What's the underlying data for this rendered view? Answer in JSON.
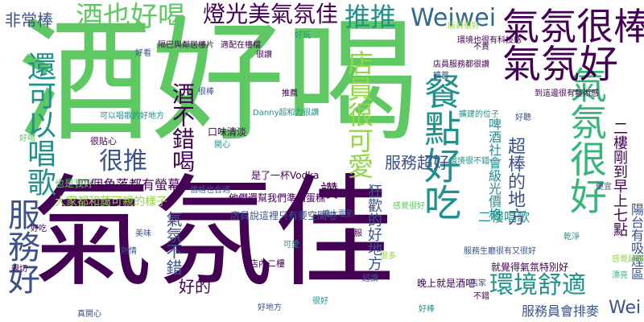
{
  "colors": {
    "dark": "#440154",
    "navy": "#3b528b",
    "blue": "#31688e",
    "teal": "#21918c",
    "sea": "#35b779",
    "green": "#5ec962",
    "lime": "#90d743",
    "yellow": "#c8e020"
  },
  "words": [
    {
      "text": "酒好喝",
      "color": "green"
    },
    {
      "text": "氣氛佳",
      "color": "dark"
    },
    {
      "text": "餐點好吃",
      "color": "teal"
    },
    {
      "text": "氣氛很好",
      "color": "sea"
    },
    {
      "text": "氣氛好",
      "color": "dark"
    },
    {
      "text": "氣氛很棒",
      "color": "dark"
    },
    {
      "text": "推推",
      "color": "teal"
    },
    {
      "text": "Weiwei",
      "color": "blue"
    },
    {
      "text": "酒也好喝",
      "color": "green"
    },
    {
      "text": "燈光美氣氛佳",
      "color": "dark"
    },
    {
      "text": "非常棒",
      "color": "navy"
    },
    {
      "text": "還可以唱歌",
      "color": "teal"
    },
    {
      "text": "服務好",
      "color": "navy"
    },
    {
      "text": "很推",
      "color": "navy"
    },
    {
      "text": "酒不錯喝",
      "color": "dark"
    },
    {
      "text": "店員很可愛",
      "color": "lime"
    },
    {
      "text": "服務超好",
      "color": "navy"
    },
    {
      "text": "超棒的地方",
      "color": "navy"
    },
    {
      "text": "環境舒適",
      "color": "teal"
    },
    {
      "text": "狂歡的好地方",
      "color": "navy"
    },
    {
      "text": "氣氛不錯",
      "color": "navy"
    },
    {
      "text": "好的",
      "color": "dark"
    },
    {
      "text": "讚",
      "color": "dark"
    },
    {
      "text": "Wei",
      "color": "navy"
    },
    {
      "text": "四個角落都有螢幕",
      "color": "dark"
    },
    {
      "text": "大家都和藹可親的樣子",
      "color": "lime"
    },
    {
      "text": "二樓唱歌",
      "color": "teal"
    },
    {
      "text": "服務員會排麥",
      "color": "navy"
    },
    {
      "text": "陽台有吸煙區",
      "color": "navy"
    },
    {
      "text": "二樓剛到早上七點",
      "color": "dark"
    },
    {
      "text": "啤酒社會級光價格",
      "color": "teal"
    },
    {
      "text": "店員說這裡只有要空間啦",
      "color": "navy"
    },
    {
      "text": "他們還幫我們準備蛋糕",
      "color": "dark"
    },
    {
      "text": "是了一杯Vodka",
      "color": "dark"
    },
    {
      "text": "口味清淡",
      "color": "dark"
    },
    {
      "text": "也是我好",
      "color": "green"
    },
    {
      "text": "店員服務都很讚",
      "color": "dark"
    },
    {
      "text": "環境也很有科技感",
      "color": "dark"
    },
    {
      "text": "就覺得氣氛特別好",
      "color": "dark"
    },
    {
      "text": "晚上就是酒吧",
      "color": "dark"
    },
    {
      "text": "服務生廳很有又很好",
      "color": "navy"
    },
    {
      "text": "很貼心",
      "color": "dark"
    },
    {
      "text": "價格也合適",
      "color": "navy"
    },
    {
      "text": "可以唱歌的好地方",
      "color": "teal"
    },
    {
      "text": "Danny超和力很讚",
      "color": "teal"
    },
    {
      "text": "適配在樓檔",
      "color": "dark"
    },
    {
      "text": "隔巴與鄰居樓片",
      "color": "dark"
    },
    {
      "text": "店內二樓",
      "color": "dark"
    },
    {
      "text": "店員很好",
      "color": "lime"
    },
    {
      "text": "漂亮",
      "color": "sea"
    },
    {
      "text": "擴大電影",
      "color": "navy"
    },
    {
      "text": "店家",
      "color": "navy"
    },
    {
      "text": "到這邊很有藝術感",
      "color": "dark"
    },
    {
      "text": "環境很不錯",
      "color": "teal"
    },
    {
      "text": "真開心",
      "color": "navy"
    },
    {
      "text": "擴建的位子",
      "color": "teal"
    },
    {
      "text": "感覺超棒的",
      "color": "lime"
    },
    {
      "text": "很多",
      "color": "lime"
    },
    {
      "text": "擴嘗",
      "color": "navy"
    },
    {
      "text": "感覺很好",
      "color": "green"
    },
    {
      "text": "好地方",
      "color": "navy"
    },
    {
      "text": "不錯",
      "color": "dark"
    },
    {
      "text": "超讚",
      "color": "navy"
    },
    {
      "text": "很好",
      "color": "teal"
    },
    {
      "text": "好喝",
      "color": "green"
    },
    {
      "text": "好吃",
      "color": "dark"
    },
    {
      "text": "好看",
      "color": "navy"
    },
    {
      "text": "很讚",
      "color": "dark"
    },
    {
      "text": "好玩",
      "color": "teal"
    },
    {
      "text": "很棒",
      "color": "navy"
    },
    {
      "text": "推薦",
      "color": "dark"
    },
    {
      "text": "開心",
      "color": "teal"
    },
    {
      "text": "好聽",
      "color": "navy"
    },
    {
      "text": "不貴",
      "color": "dark"
    },
    {
      "text": "乾淨",
      "color": "teal"
    },
    {
      "text": "便宜",
      "color": "navy"
    },
    {
      "text": "親切",
      "color": "dark"
    },
    {
      "text": "熱情",
      "color": "navy"
    },
    {
      "text": "好棒",
      "color": "teal"
    },
    {
      "text": "舒服",
      "color": "dark"
    },
    {
      "text": "美味",
      "color": "navy"
    },
    {
      "text": "可愛",
      "color": "teal"
    }
  ]
}
